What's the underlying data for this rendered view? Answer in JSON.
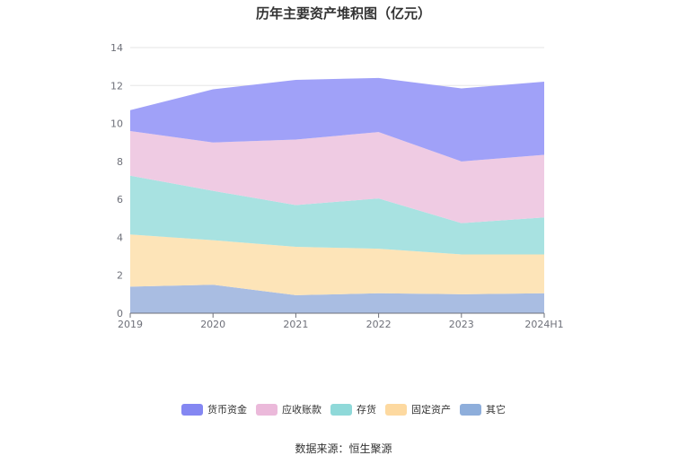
{
  "chart_data": {
    "type": "area",
    "stacked": true,
    "title": "历年主要资产堆积图（亿元）",
    "categories": [
      "2019",
      "2020",
      "2021",
      "2022",
      "2023",
      "2024H1"
    ],
    "ylim": [
      0,
      14
    ],
    "yticks": [
      0,
      2,
      4,
      6,
      8,
      10,
      12,
      14
    ],
    "grid": true,
    "legend_position": "bottom-center",
    "series": [
      {
        "name": "其它",
        "color": "#a9bde2",
        "legend_color": "#8eaedb",
        "values": [
          1.4,
          1.5,
          0.95,
          1.05,
          1.0,
          1.05
        ]
      },
      {
        "name": "固定资产",
        "color": "#fde4b8",
        "legend_color": "#fdd9a0",
        "values": [
          2.75,
          2.35,
          2.55,
          2.35,
          2.1,
          2.05
        ]
      },
      {
        "name": "存货",
        "color": "#a8e2e1",
        "legend_color": "#8fd9d9",
        "values": [
          3.1,
          2.6,
          2.2,
          2.65,
          1.65,
          1.95
        ]
      },
      {
        "name": "应收账款",
        "color": "#efcbe3",
        "legend_color": "#ebb9da",
        "values": [
          2.35,
          2.55,
          3.45,
          3.5,
          3.25,
          3.3
        ]
      },
      {
        "name": "货币资金",
        "color": "#a0a1f8",
        "legend_color": "#8487f2",
        "values": [
          1.1,
          2.8,
          3.15,
          2.85,
          3.85,
          3.85
        ]
      }
    ]
  },
  "source": "数据来源：恒生聚源"
}
